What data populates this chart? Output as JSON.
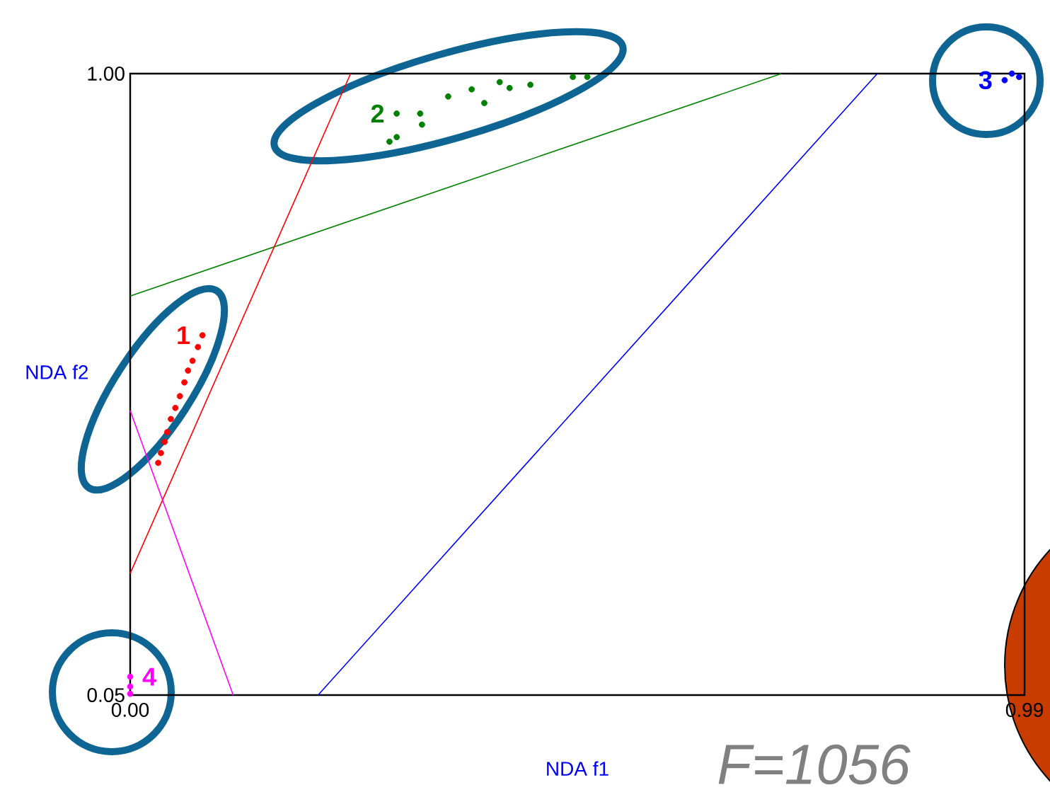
{
  "chart_data": {
    "type": "scatter",
    "xlabel": "NDA f1",
    "ylabel": "NDA f2",
    "xlim": [
      0.0,
      0.99
    ],
    "ylim": [
      0.05,
      1.0
    ],
    "xticks": [
      {
        "value": 0.0,
        "label": "0.00"
      },
      {
        "value": 0.99,
        "label": "0.99"
      }
    ],
    "yticks": [
      {
        "value": 0.05,
        "label": "0.05"
      },
      {
        "value": 1.0,
        "label": "1.00"
      }
    ],
    "annotations": [
      "F=1056"
    ],
    "series": [
      {
        "name": "1",
        "marker": "circle",
        "color": "#ff0000",
        "x": [
          0.08,
          0.075,
          0.069,
          0.064,
          0.06,
          0.055,
          0.05,
          0.045,
          0.041,
          0.038,
          0.034,
          0.031
        ],
        "values": [
          0.6,
          0.582,
          0.561,
          0.546,
          0.528,
          0.507,
          0.489,
          0.472,
          0.452,
          0.437,
          0.42,
          0.405
        ]
      },
      {
        "name": "2",
        "marker": "circle",
        "color": "#008000",
        "x": [
          0.295,
          0.321,
          0.295,
          0.323,
          0.352,
          0.378,
          0.392,
          0.409,
          0.42,
          0.443,
          0.49,
          0.506,
          0.287
        ],
        "values": [
          0.939,
          0.939,
          0.903,
          0.922,
          0.965,
          0.976,
          0.955,
          0.987,
          0.978,
          0.983,
          0.995,
          0.995,
          0.896
        ]
      },
      {
        "name": "3",
        "marker": "circle",
        "color": "#0000ff",
        "x": [
          0.968,
          0.976,
          0.984
        ],
        "values": [
          0.99,
          1.0,
          0.995
        ]
      },
      {
        "name": "4",
        "marker": "circle",
        "color": "#ff00ff",
        "x": [
          0.0,
          0.0,
          0.0
        ],
        "values": [
          0.078,
          0.063,
          0.052
        ]
      },
      {
        "type": "line",
        "color": "#008000",
        "x": [
          0.0,
          0.721
        ],
        "values": [
          0.66,
          1.0
        ]
      },
      {
        "type": "line",
        "color": "#ff0000",
        "x": [
          0.0,
          0.244
        ],
        "values": [
          0.236,
          1.0
        ]
      },
      {
        "type": "line",
        "color": "#0000ff",
        "x": [
          0.208,
          0.827
        ],
        "values": [
          0.05,
          1.0
        ]
      },
      {
        "type": "line",
        "color": "#ff00ff",
        "x": [
          0.0,
          0.114
        ],
        "values": [
          0.485,
          0.05
        ]
      }
    ]
  }
}
